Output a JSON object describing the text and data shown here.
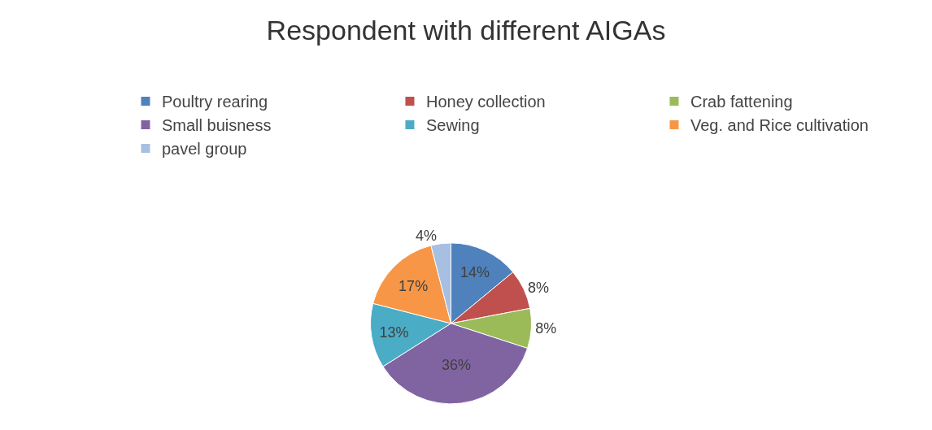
{
  "chart_data": {
    "type": "pie",
    "title": "Respondent with different AIGAs",
    "categories": [
      "Poultry rearing",
      "Honey collection",
      "Crab fattening",
      "Small buisness",
      "Sewing",
      "Veg. and Rice cultivation",
      "pavel group"
    ],
    "values": [
      14,
      8,
      8,
      36,
      13,
      17,
      4
    ],
    "colors": [
      "#4f81bd",
      "#c0504d",
      "#9bbb59",
      "#8064a2",
      "#4bacc6",
      "#f79646",
      "#a7bfe0"
    ],
    "value_labels": [
      "14%",
      "8%",
      "8%",
      "36%",
      "13%",
      "17%",
      "4%"
    ],
    "legend": "top"
  }
}
